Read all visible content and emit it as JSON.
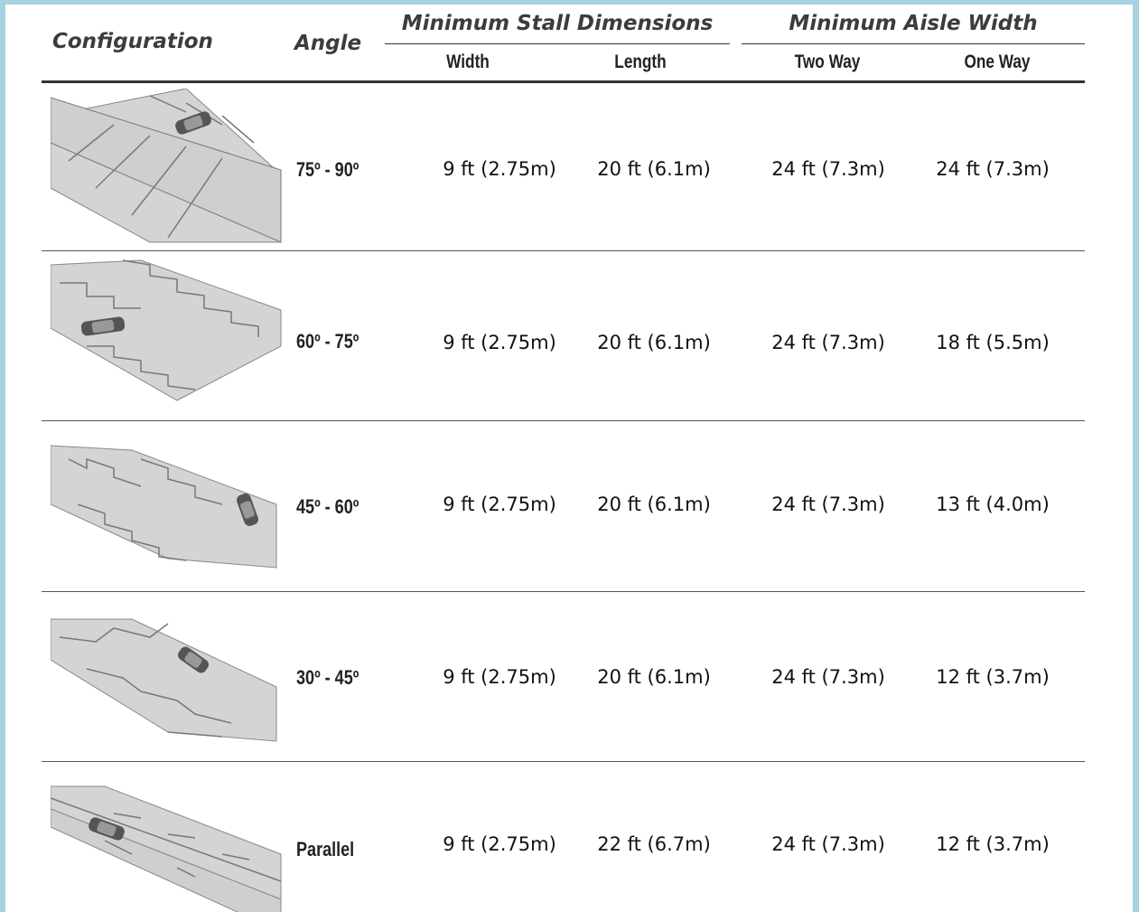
{
  "header": {
    "configuration": "Configuration",
    "angle": "Angle",
    "stall_group": "Minimum Stall Dimensions",
    "aisle_group": "Minimum Aisle Width",
    "width": "Width",
    "length": "Length",
    "two_way": "Two Way",
    "one_way": "One Way"
  },
  "rows": [
    {
      "angle": "75º - 90º",
      "width": "9 ft (2.75m)",
      "length": "20 ft (6.1m)",
      "two_way": "24 ft (7.3m)",
      "one_way": "24 ft (7.3m)"
    },
    {
      "angle": "60º - 75º",
      "width": "9 ft (2.75m)",
      "length": "20 ft (6.1m)",
      "two_way": "24 ft (7.3m)",
      "one_way": "18 ft (5.5m)"
    },
    {
      "angle": "45º - 60º",
      "width": "9 ft (2.75m)",
      "length": "20 ft (6.1m)",
      "two_way": "24 ft (7.3m)",
      "one_way": "13 ft (4.0m)"
    },
    {
      "angle": "30º - 45º",
      "width": "9 ft (2.75m)",
      "length": "20 ft (6.1m)",
      "two_way": "24 ft (7.3m)",
      "one_way": "12 ft (3.7m)"
    },
    {
      "angle": "Parallel",
      "width": "9 ft (2.75m)",
      "length": "22 ft (6.7m)",
      "two_way": "24 ft (7.3m)",
      "one_way": "12 ft (3.7m)"
    }
  ],
  "colors": {
    "page_border": "#a5d3e0",
    "pavement": "#d4d4d4",
    "stall_line": "#777777"
  },
  "icons": [
    "parking-90-icon",
    "parking-60-icon",
    "parking-45-icon",
    "parking-30-icon",
    "parking-parallel-icon"
  ]
}
